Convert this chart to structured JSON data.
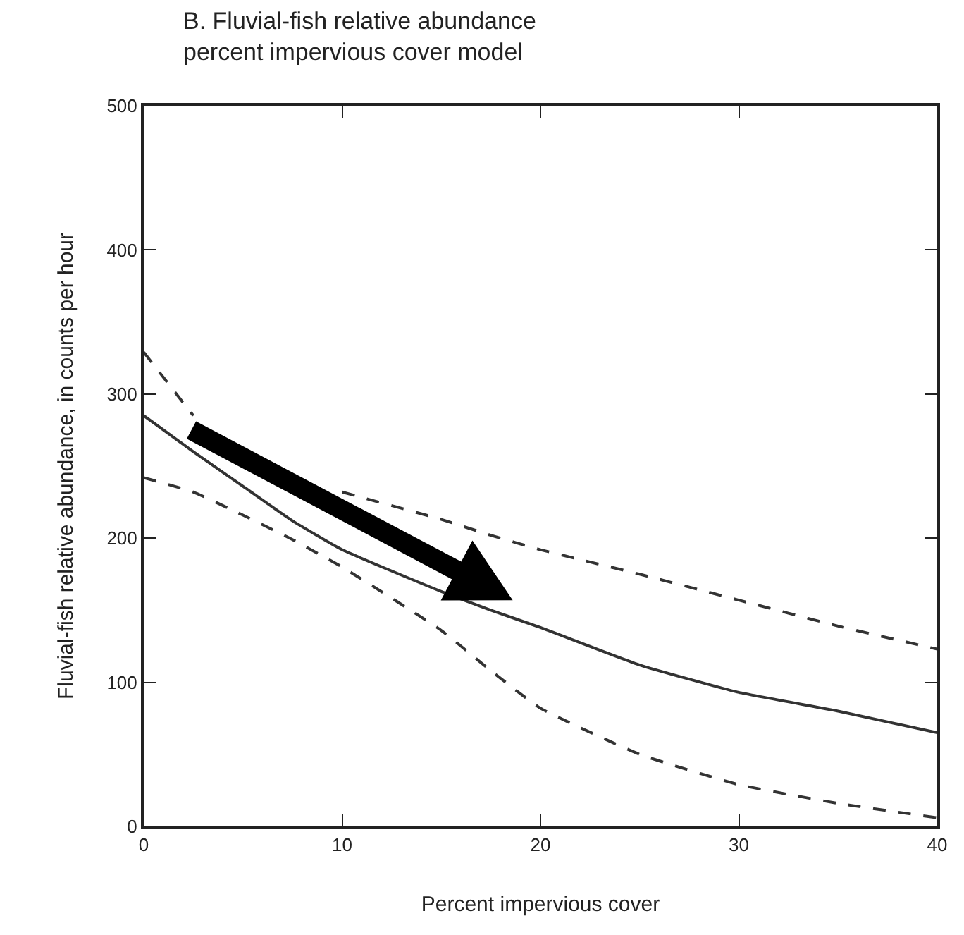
{
  "chart_data": {
    "type": "line",
    "title": "B. Fluvial-fish relative abundance\npercent impervious cover model",
    "xlabel": "Percent impervious cover",
    "ylabel": "Fluvial-fish relative abundance, in counts per hour",
    "x": [
      0,
      2.5,
      5,
      7.5,
      10,
      15,
      17.5,
      20,
      25,
      30,
      35,
      40
    ],
    "series": [
      {
        "color": "#333333",
        "line_style": "solid",
        "values": [
          285,
          260,
          236,
          212,
          192,
          163,
          150,
          138,
          112,
          93,
          80,
          65
        ]
      },
      {
        "color": "#333333",
        "line_style": "dashed",
        "values": [
          329,
          285,
          null,
          null,
          232,
          213,
          202,
          192,
          175,
          157,
          139,
          123
        ]
      },
      {
        "color": "#333333",
        "line_style": "dashed",
        "values": [
          242,
          232,
          216,
          199,
          180,
          136,
          108,
          82,
          50,
          29,
          16,
          6
        ]
      }
    ],
    "xlim": [
      0,
      40
    ],
    "xticks": [
      0,
      10,
      20,
      30,
      40
    ],
    "ylim": [
      0,
      500
    ],
    "yticks": [
      0,
      100,
      200,
      300,
      400,
      500
    ],
    "grid": false,
    "marker": "none"
  }
}
